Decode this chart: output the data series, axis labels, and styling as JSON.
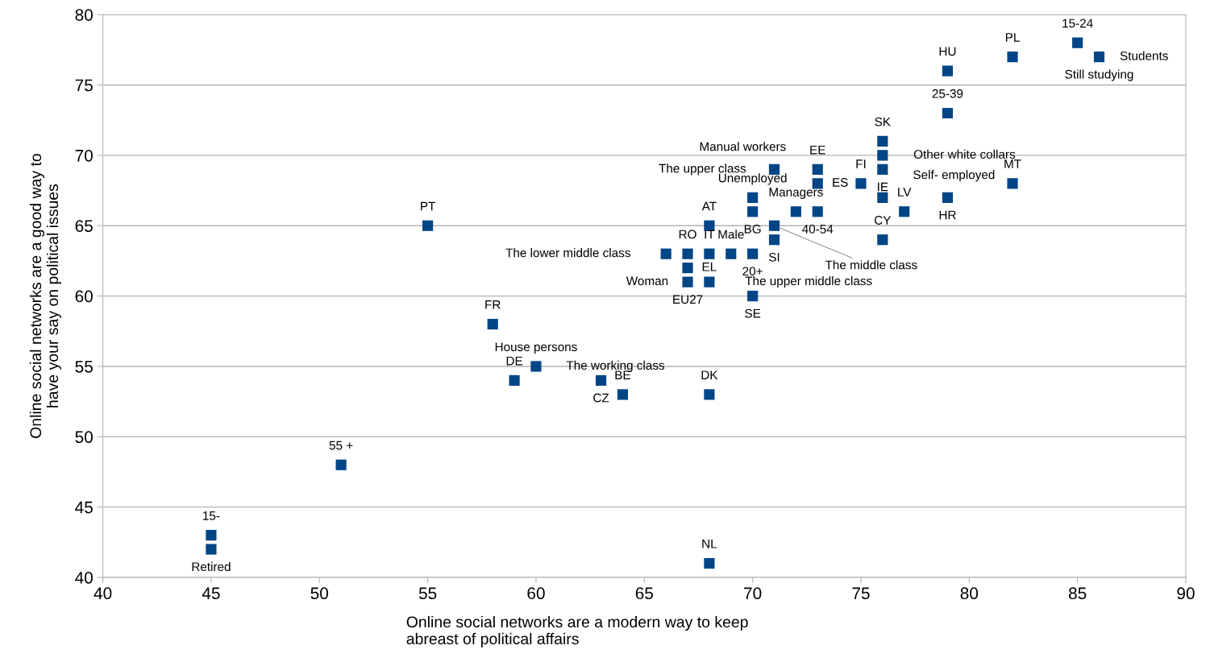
{
  "chart_data": {
    "type": "scatter",
    "xlabel": "Online social networks are a modern way to keep\nabreast of political affairs",
    "ylabel": "Online social networks are a good way to\nhave your say on political issues",
    "x": [
      45,
      45,
      51,
      55,
      58,
      59,
      60,
      63,
      64,
      68,
      68,
      70,
      68,
      67,
      67,
      66,
      67,
      68,
      69,
      70,
      71,
      71,
      68,
      70,
      70,
      72,
      73,
      76,
      77,
      75,
      76,
      79,
      71,
      73,
      73,
      76,
      76,
      76,
      79,
      79,
      82,
      82,
      85,
      86
    ],
    "values": [
      43,
      42,
      48,
      65,
      58,
      54,
      55,
      54,
      53,
      53,
      41,
      60,
      61,
      61,
      62,
      63,
      63,
      63,
      63,
      63,
      64,
      65,
      65,
      66,
      67,
      66,
      66,
      64,
      66,
      68,
      67,
      67,
      69,
      69,
      68,
      69,
      70,
      71,
      73,
      76,
      68,
      77,
      78,
      77
    ],
    "color": "#004586",
    "marker": "square",
    "grid": "y",
    "legend": false,
    "xlim": [
      40,
      90
    ],
    "ylim": [
      40,
      80
    ],
    "xticks": [
      40,
      45,
      50,
      55,
      60,
      65,
      70,
      75,
      80,
      85,
      90
    ],
    "yticks": [
      40,
      45,
      50,
      55,
      60,
      65,
      70,
      75,
      80
    ],
    "annotations": [
      {
        "text": "15-",
        "x": 45,
        "y": 43
      },
      {
        "text": "Retired",
        "x": 45,
        "y": 42
      },
      {
        "text": "55 +",
        "x": 51,
        "y": 48
      },
      {
        "text": "PT",
        "x": 55,
        "y": 65
      },
      {
        "text": "FR",
        "x": 58,
        "y": 58
      },
      {
        "text": "DE",
        "x": 59,
        "y": 54
      },
      {
        "text": "House persons",
        "x": 60,
        "y": 55
      },
      {
        "text": "The working class",
        "x": 60,
        "y": 55
      },
      {
        "text": "CZ",
        "x": 63,
        "y": 54
      },
      {
        "text": "BE",
        "x": 64,
        "y": 53
      },
      {
        "text": "DK",
        "x": 68,
        "y": 53
      },
      {
        "text": "NL",
        "x": 68,
        "y": 41
      },
      {
        "text": "SE",
        "x": 70,
        "y": 60
      },
      {
        "text": "The upper middle class",
        "x": 68,
        "y": 61
      },
      {
        "text": "EU27",
        "x": 67,
        "y": 61
      },
      {
        "text": "Woman",
        "x": 67,
        "y": 61
      },
      {
        "text": "EL",
        "x": 67,
        "y": 62
      },
      {
        "text": "The lower middle class",
        "x": 66,
        "y": 63
      },
      {
        "text": "RO",
        "x": 67,
        "y": 63
      },
      {
        "text": "IT",
        "x": 68,
        "y": 63
      },
      {
        "text": "Male",
        "x": 69,
        "y": 63
      },
      {
        "text": "20+",
        "x": 70,
        "y": 63
      },
      {
        "text": "SI",
        "x": 71,
        "y": 64
      },
      {
        "text": "The middle class",
        "x": 71,
        "y": 65
      },
      {
        "text": "AT",
        "x": 68,
        "y": 65
      },
      {
        "text": "BG",
        "x": 70,
        "y": 66
      },
      {
        "text": "Unemployed",
        "x": 70,
        "y": 67
      },
      {
        "text": "Managers",
        "x": 72,
        "y": 66
      },
      {
        "text": "40-54",
        "x": 73,
        "y": 66
      },
      {
        "text": "CY",
        "x": 76,
        "y": 64
      },
      {
        "text": "LV",
        "x": 77,
        "y": 66
      },
      {
        "text": "FI",
        "x": 75,
        "y": 68
      },
      {
        "text": "Self- employed",
        "x": 76,
        "y": 67
      },
      {
        "text": "HR",
        "x": 79,
        "y": 67
      },
      {
        "text": "The upper class",
        "x": 71,
        "y": 69
      },
      {
        "text": "EE",
        "x": 73,
        "y": 69
      },
      {
        "text": "Manual workers",
        "x": 73,
        "y": 69
      },
      {
        "text": "ES",
        "x": 73,
        "y": 68
      },
      {
        "text": "IE",
        "x": 76,
        "y": 69
      },
      {
        "text": "Other white collars",
        "x": 76,
        "y": 70
      },
      {
        "text": "SK",
        "x": 76,
        "y": 71
      },
      {
        "text": "25-39",
        "x": 79,
        "y": 73
      },
      {
        "text": "HU",
        "x": 79,
        "y": 76
      },
      {
        "text": "MT",
        "x": 82,
        "y": 68
      },
      {
        "text": "PL",
        "x": 82,
        "y": 77
      },
      {
        "text": "15-24",
        "x": 85,
        "y": 78
      },
      {
        "text": "Still studying",
        "x": 86,
        "y": 77
      },
      {
        "text": "Students",
        "x": 86,
        "y": 77
      }
    ]
  }
}
